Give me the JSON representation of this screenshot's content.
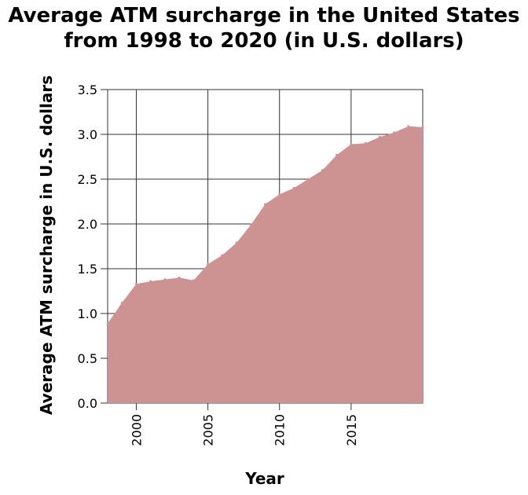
{
  "chart_data": {
    "type": "area",
    "title_lines": [
      "Average ATM surcharge in the United States",
      "from 1998 to 2020 (in U.S. dollars)"
    ],
    "xlabel": "Year",
    "ylabel": "Average ATM surcharge in U.S. dollars",
    "x": [
      1998,
      1999,
      2000,
      2001,
      2002,
      2003,
      2004,
      2005,
      2006,
      2007,
      2008,
      2009,
      2010,
      2011,
      2012,
      2013,
      2014,
      2015,
      2016,
      2017,
      2018,
      2019,
      2020
    ],
    "series": [
      {
        "values": [
          0.89,
          1.12,
          1.33,
          1.36,
          1.38,
          1.4,
          1.37,
          1.55,
          1.65,
          1.79,
          1.99,
          2.22,
          2.33,
          2.4,
          2.5,
          2.6,
          2.77,
          2.89,
          2.9,
          2.97,
          3.02,
          3.09,
          3.08
        ]
      }
    ],
    "xlim": [
      1998,
      2020
    ],
    "ylim": [
      0,
      3.5
    ],
    "x_ticks": [
      "2000",
      "2005",
      "2010",
      "2015"
    ],
    "y_ticks": [
      "0.0",
      "0.5",
      "1.0",
      "1.5",
      "2.0",
      "2.5",
      "3.0",
      "3.5"
    ],
    "grid": true,
    "fill_color": "#cd9393"
  }
}
